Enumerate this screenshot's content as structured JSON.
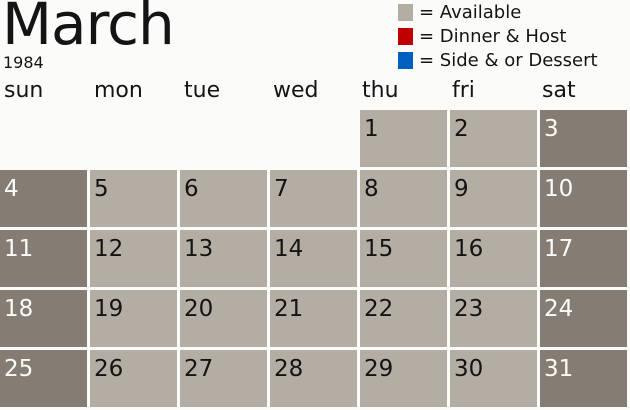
{
  "header": {
    "month": "March",
    "year": "1984"
  },
  "legend": [
    {
      "label": "= Available",
      "color": "#b4ada4"
    },
    {
      "label": "= Dinner & Host",
      "color": "#c00000"
    },
    {
      "label": "= Side & or Dessert",
      "color": "#0060c0"
    }
  ],
  "days_of_week": [
    "sun",
    "mon",
    "tue",
    "wed",
    "thu",
    "fri",
    "sat"
  ],
  "colors": {
    "available": "#b4ada4",
    "weekend": "#857d73"
  },
  "first_weekday": 4,
  "dates": [
    "1",
    "2",
    "3",
    "4",
    "5",
    "6",
    "7",
    "8",
    "9",
    "10",
    "11",
    "12",
    "13",
    "14",
    "15",
    "16",
    "17",
    "18",
    "19",
    "20",
    "21",
    "22",
    "23",
    "24",
    "25",
    "26",
    "27",
    "28",
    "29",
    "30",
    "31"
  ]
}
